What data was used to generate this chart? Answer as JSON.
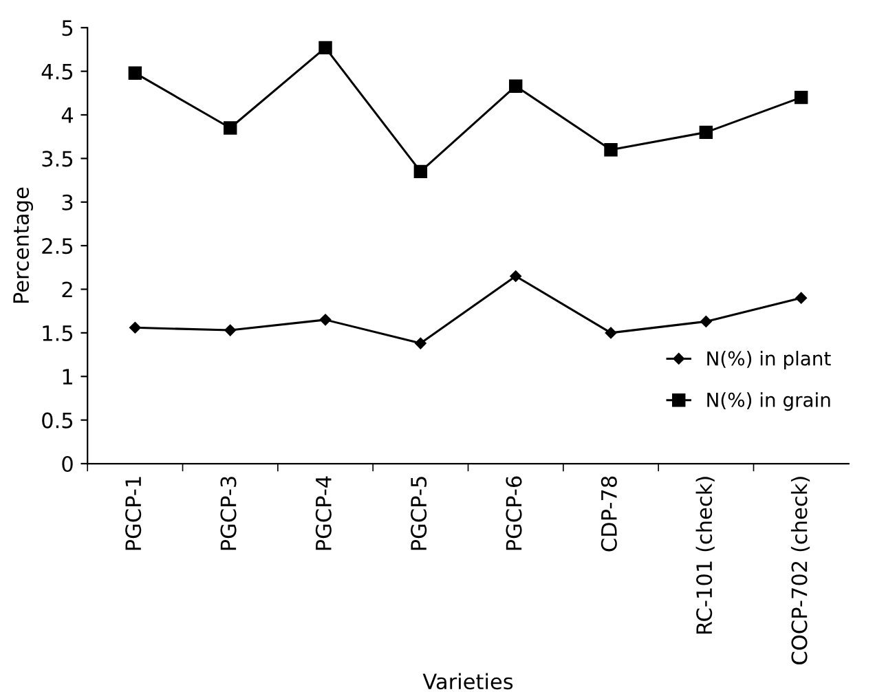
{
  "chart_data": {
    "type": "line",
    "xlabel": "Varieties",
    "ylabel": "Percentage",
    "categories": [
      "PGCP-1",
      "PGCP-3",
      "PGCP-4",
      "PGCP-5",
      "PGCP-6",
      "CDP-78",
      "RC-101 (check)",
      "COCP-702 (check)"
    ],
    "series": [
      {
        "name": "N(%) in plant",
        "color": "#000000",
        "marker": "diamond",
        "values": [
          1.56,
          1.53,
          1.65,
          1.38,
          2.15,
          1.5,
          1.63,
          1.9
        ]
      },
      {
        "name": "N(%) in grain",
        "color": "#000000",
        "marker": "square",
        "values": [
          4.48,
          3.85,
          4.77,
          3.35,
          4.33,
          3.6,
          3.8,
          4.2
        ]
      }
    ],
    "ylim": [
      0,
      5
    ],
    "yticks": [
      0,
      0.5,
      1,
      1.5,
      2,
      2.5,
      3,
      3.5,
      4,
      4.5,
      5
    ],
    "grid": false,
    "legend": "right",
    "line_style": "solid"
  }
}
